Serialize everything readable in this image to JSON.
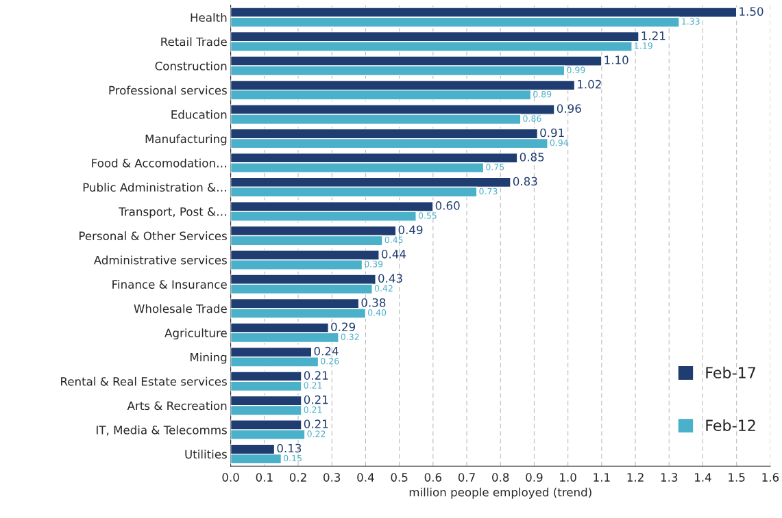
{
  "chart_data": {
    "type": "bar",
    "orientation": "horizontal",
    "xlabel": "million people employed (trend)",
    "categories": [
      "Health",
      "Retail Trade",
      "Construction",
      "Professional services",
      "Education",
      "Manufacturing",
      "Food & Accomodation…",
      "Public Administration &…",
      "Transport, Post &…",
      "Personal & Other Services",
      "Administrative services",
      "Finance & Insurance",
      "Wholesale Trade",
      "Agriculture",
      "Mining",
      "Rental & Real Estate services",
      "Arts & Recreation",
      "IT, Media & Telecomms",
      "Utilities"
    ],
    "series": [
      {
        "name": "Feb-17",
        "color": "#1f3d70",
        "values": [
          1.5,
          1.21,
          1.1,
          1.02,
          0.96,
          0.91,
          0.85,
          0.83,
          0.6,
          0.49,
          0.44,
          0.43,
          0.38,
          0.29,
          0.24,
          0.21,
          0.21,
          0.21,
          0.13
        ],
        "value_labels": [
          "1.50",
          "1.21",
          "1.10",
          "1.02",
          "0.96",
          "0.91",
          "0.85",
          "0.83",
          "0.60",
          "0.49",
          "0.44",
          "0.43",
          "0.38",
          "0.29",
          "0.24",
          "0.21",
          "0.21",
          "0.21",
          "0.13"
        ]
      },
      {
        "name": "Feb-12",
        "color": "#4bb0c9",
        "values": [
          1.33,
          1.19,
          0.99,
          0.89,
          0.86,
          0.94,
          0.75,
          0.73,
          0.55,
          0.45,
          0.39,
          0.42,
          0.4,
          0.32,
          0.26,
          0.21,
          0.21,
          0.22,
          0.15
        ],
        "value_labels": [
          "1.33",
          "1.19",
          "0.99",
          "0.89",
          "0.86",
          "0.94",
          "0.75",
          "0.73",
          "0.55",
          "0.45",
          "0.39",
          "0.42",
          "0.40",
          "0.32",
          "0.26",
          "0.21",
          "0.21",
          "0.22",
          "0.15"
        ]
      }
    ],
    "xlim": [
      0,
      1.6
    ],
    "xticks": [
      {
        "value": 0,
        "label": "0.0"
      },
      0.1,
      0.2,
      0.3,
      0.4,
      0.5,
      0.6,
      0.7,
      0.8,
      0.9,
      {
        "value": 1,
        "label": "1.0"
      },
      1.1,
      1.2,
      1.3,
      1.4,
      1.5,
      1.6
    ],
    "grid": "x",
    "legend": "bottom right"
  }
}
